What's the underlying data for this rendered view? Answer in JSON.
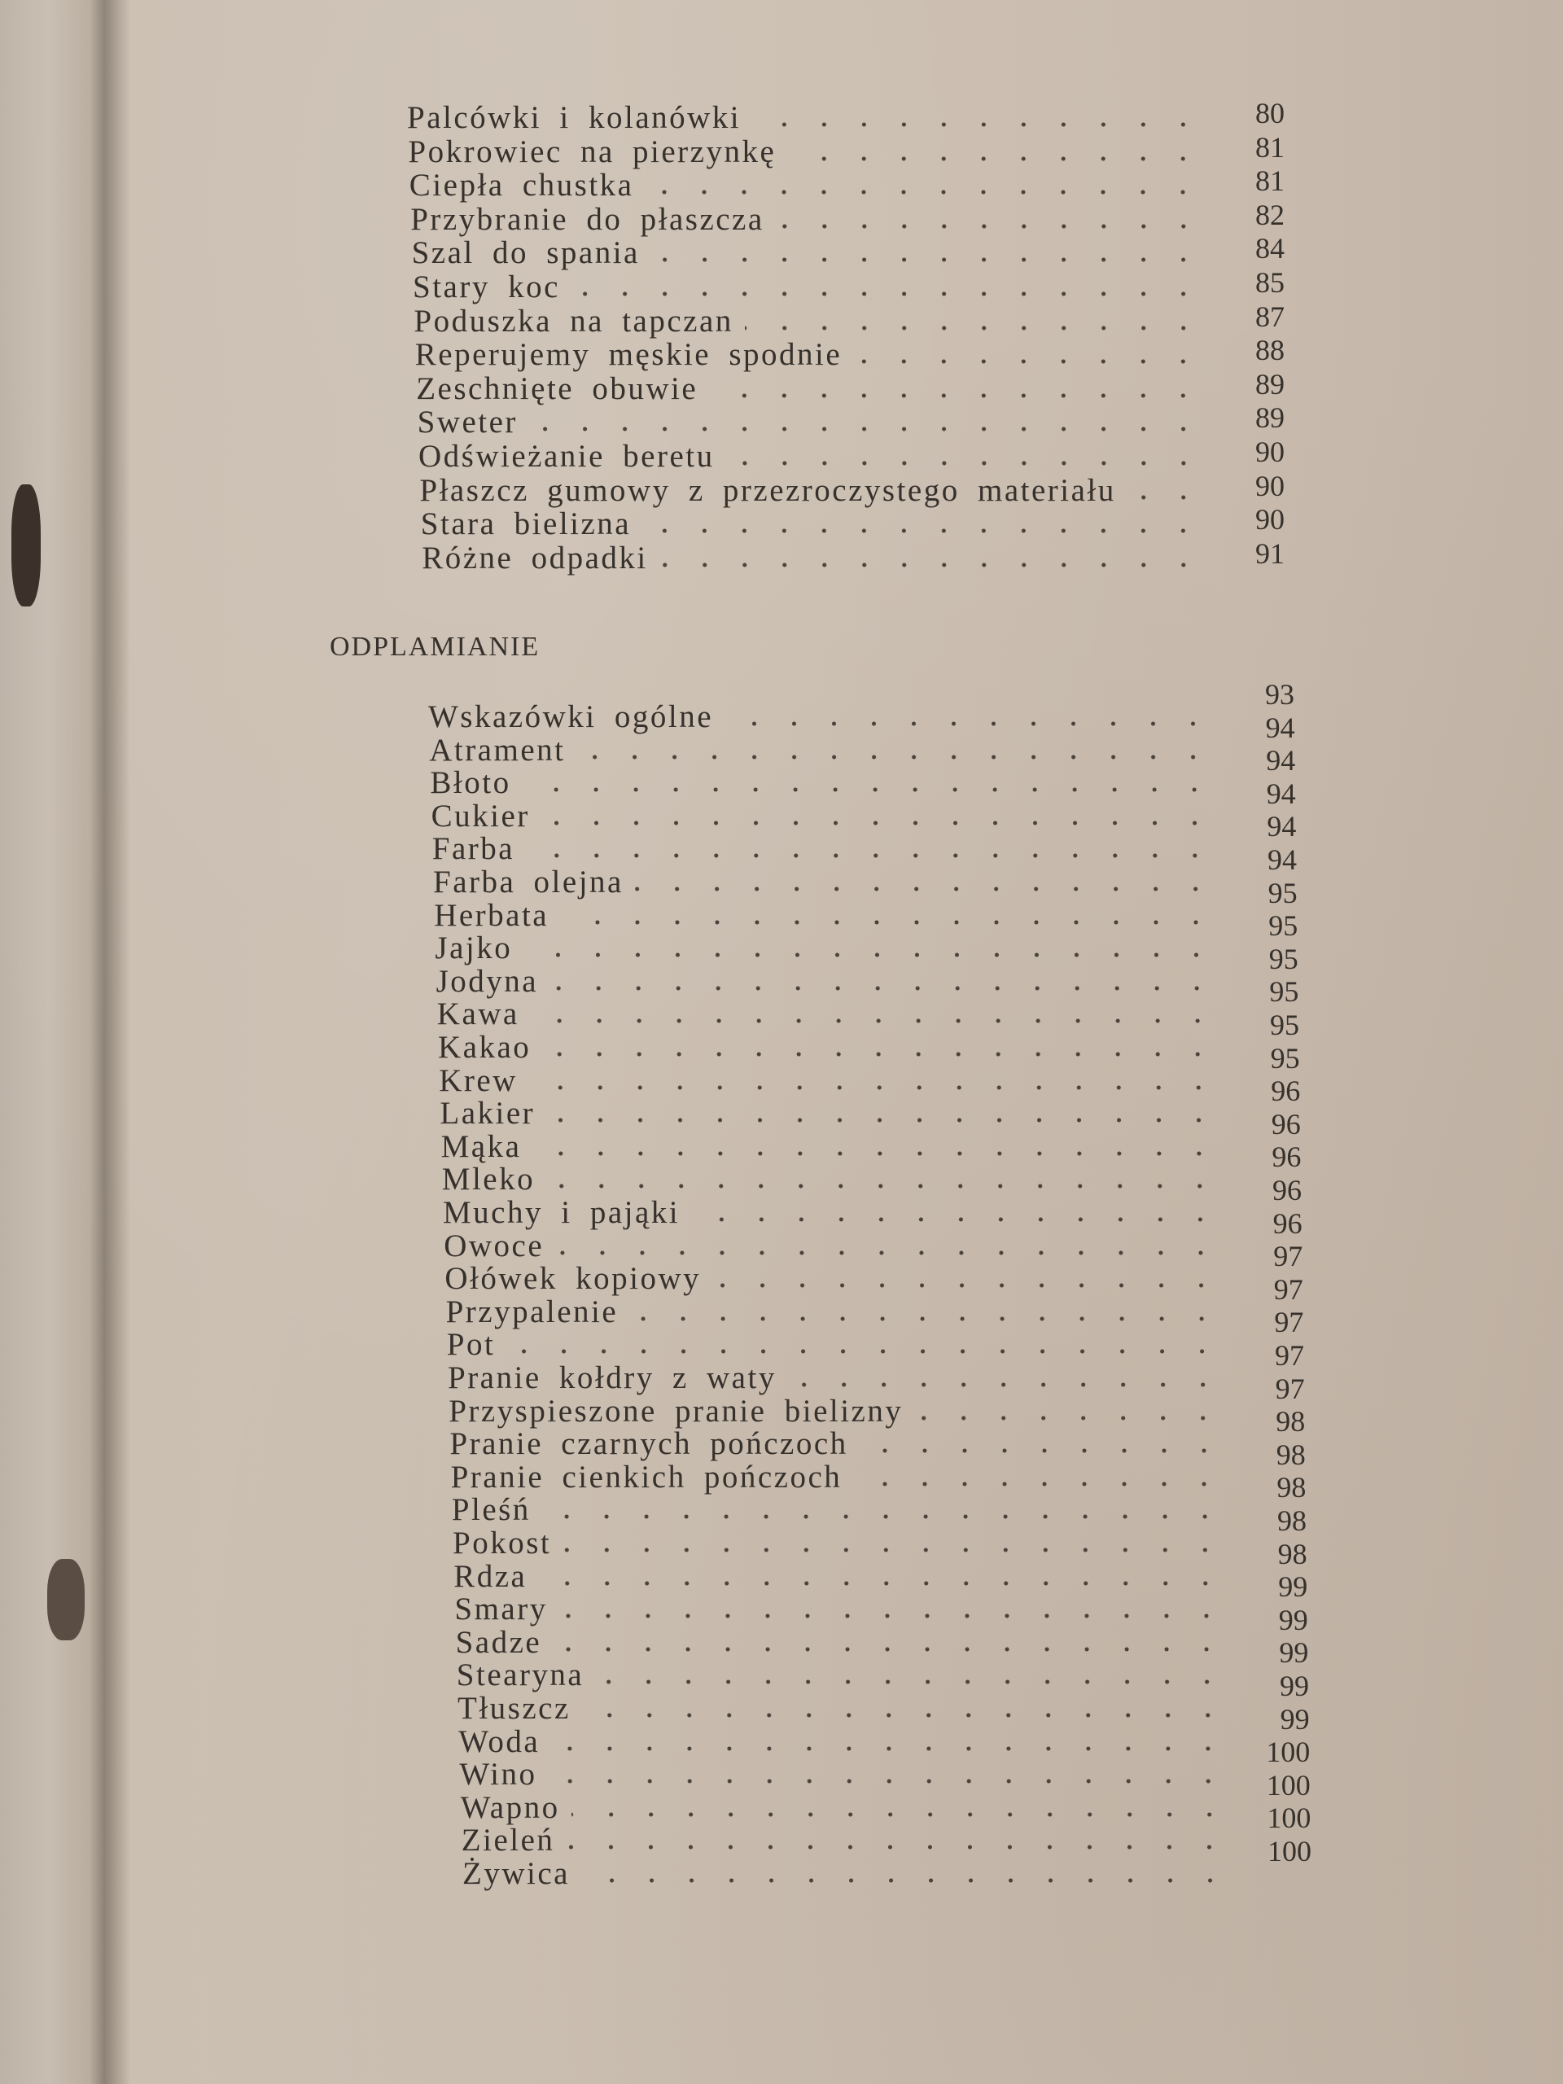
{
  "section1": {
    "entries": [
      {
        "title": "Palcówki i kolanówki",
        "page": "80"
      },
      {
        "title": "Pokrowiec na pierzynkę",
        "page": "81"
      },
      {
        "title": "Ciepła chustka",
        "page": "81"
      },
      {
        "title": "Przybranie do płaszcza",
        "page": "82"
      },
      {
        "title": "Szal do spania",
        "page": "84"
      },
      {
        "title": "Stary koc",
        "page": "85"
      },
      {
        "title": "Poduszka na tapczan",
        "page": "87"
      },
      {
        "title": "Reperujemy męskie spodnie",
        "page": "88"
      },
      {
        "title": "Zeschnięte obuwie",
        "page": "89"
      },
      {
        "title": "Sweter",
        "page": "89"
      },
      {
        "title": "Odświeżanie beretu",
        "page": "90"
      },
      {
        "title": "Płaszcz gumowy z przezroczystego materiału",
        "page": "90"
      },
      {
        "title": "Stara bielizna",
        "page": "90"
      },
      {
        "title": "Różne odpadki",
        "page": "91"
      }
    ]
  },
  "section2": {
    "heading": "ODPLAMIANIE",
    "entries": [
      {
        "title": "Wskazówki ogólne",
        "page": "93"
      },
      {
        "title": "Atrament",
        "page": "94"
      },
      {
        "title": "Błoto",
        "page": "94"
      },
      {
        "title": "Cukier",
        "page": "94"
      },
      {
        "title": "Farba",
        "page": "94"
      },
      {
        "title": "Farba olejna",
        "page": "94"
      },
      {
        "title": "Herbata",
        "page": "95"
      },
      {
        "title": "Jajko",
        "page": "95"
      },
      {
        "title": "Jodyna",
        "page": "95"
      },
      {
        "title": "Kawa",
        "page": "95"
      },
      {
        "title": "Kakao",
        "page": "95"
      },
      {
        "title": "Krew",
        "page": "95"
      },
      {
        "title": "Lakier",
        "page": "96"
      },
      {
        "title": "Mąka",
        "page": "96"
      },
      {
        "title": "Mleko",
        "page": "96"
      },
      {
        "title": "Muchy i pająki",
        "page": "96"
      },
      {
        "title": "Owoce",
        "page": "96"
      },
      {
        "title": "Ołówek kopiowy",
        "page": "97"
      },
      {
        "title": "Przypalenie",
        "page": "97"
      },
      {
        "title": "Pot",
        "page": "97"
      },
      {
        "title": "Pranie kołdry z waty",
        "page": "97"
      },
      {
        "title": "Przyspieszone pranie bielizny",
        "page": "97"
      },
      {
        "title": "Pranie czarnych pończoch",
        "page": "98"
      },
      {
        "title": "Pranie cienkich pończoch",
        "page": "98"
      },
      {
        "title": "Pleśń",
        "page": "98"
      },
      {
        "title": "Pokost",
        "page": "98"
      },
      {
        "title": "Rdza",
        "page": "98"
      },
      {
        "title": "Smary",
        "page": "99"
      },
      {
        "title": "Sadze",
        "page": "99"
      },
      {
        "title": "Stearyna",
        "page": "99"
      },
      {
        "title": "Tłuszcz",
        "page": "99"
      },
      {
        "title": "Woda",
        "page": "99"
      },
      {
        "title": "Wino",
        "page": "100"
      },
      {
        "title": "Wapno",
        "page": "100"
      },
      {
        "title": "Zieleń",
        "page": "100"
      },
      {
        "title": "Żywica",
        "page": "100"
      }
    ]
  }
}
